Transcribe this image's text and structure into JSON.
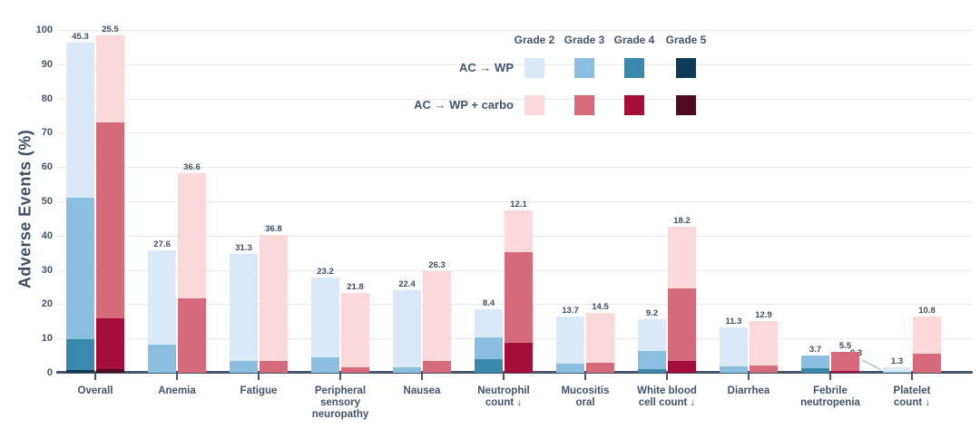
{
  "page": {
    "background": "#ffffff"
  },
  "chart_data": {
    "type": "bar",
    "stacked": true,
    "orientation": "vertical",
    "title": "",
    "xlabel": "",
    "ylabel": "Adverse Events (%)",
    "ylim": [
      0,
      100
    ],
    "yticks": [
      0,
      10,
      20,
      30,
      40,
      50,
      60,
      70,
      80,
      90,
      100
    ],
    "grid": true,
    "legend": {
      "position": "top-right",
      "grade_labels": [
        "Grade 2",
        "Grade 3",
        "Grade 4",
        "Grade 5"
      ],
      "grade_keys": [
        "grade2",
        "grade3",
        "grade4",
        "grade5"
      ]
    },
    "colors": {
      "wp": {
        "grade2": "#d9e9f8",
        "grade3": "#8bbfdf",
        "grade4": "#3a89ad",
        "grade5": "#0e3a57"
      },
      "carbo": {
        "grade2": "#fbd8da",
        "grade3": "#d56a7b",
        "grade4": "#a50d3b",
        "grade5": "#4f0a1e"
      },
      "axis_text": "#44546b",
      "value_label": "#3e4e63",
      "value_label_white": "#ffffff",
      "gridline": "#e8e9eb",
      "baseline": "#47566c",
      "leader_line": "#9fb1c1"
    },
    "categories": [
      "Overall",
      "Anemia",
      "Fatigue",
      "Peripheral sensory neuropathy",
      "Nausea",
      "Neutrophil count ↓",
      "Mucositis oral",
      "White blood cell count ↓",
      "Diarrhea",
      "Febrile neutropenia",
      "Platelet count ↓"
    ],
    "category_lines": [
      [
        "Overall"
      ],
      [
        "Anemia"
      ],
      [
        "Fatigue"
      ],
      [
        "Peripheral",
        "sensory",
        "neuropathy"
      ],
      [
        "Nausea"
      ],
      [
        "Neutrophil",
        "count ↓"
      ],
      [
        "Mucositis",
        "oral"
      ],
      [
        "White blood",
        "cell count ↓"
      ],
      [
        "Diarrhea"
      ],
      [
        "Febrile",
        "neutropenia"
      ],
      [
        "Platelet",
        "count ↓"
      ]
    ],
    "series": [
      {
        "key": "wp",
        "name": "AC → WP",
        "bars": [
          [
            {
              "grade": "grade5",
              "value": 0.8,
              "white_label": true
            },
            {
              "grade": "grade4",
              "value": 8.9
            },
            {
              "grade": "grade3",
              "value": 41.3
            },
            {
              "grade": "grade2",
              "value": 45.3
            }
          ],
          [
            {
              "grade": "grade3",
              "value": 8.2
            },
            {
              "grade": "grade2",
              "value": 27.6
            }
          ],
          [
            {
              "grade": "grade3",
              "value": 3.4
            },
            {
              "grade": "grade2",
              "value": 31.3
            }
          ],
          [
            {
              "grade": "grade3",
              "value": 4.5
            },
            {
              "grade": "grade2",
              "value": 23.2
            }
          ],
          [
            {
              "grade": "grade3",
              "value": 1.6
            },
            {
              "grade": "grade2",
              "value": 22.4
            }
          ],
          [
            {
              "grade": "grade4",
              "value": 3.9
            },
            {
              "grade": "grade3",
              "value": 6.3
            },
            {
              "grade": "grade2",
              "value": 8.4
            }
          ],
          [
            {
              "grade": "grade3",
              "value": 2.6
            },
            {
              "grade": "grade2",
              "value": 13.7
            }
          ],
          [
            {
              "grade": "grade4",
              "value": 1.1
            },
            {
              "grade": "grade3",
              "value": 5.3
            },
            {
              "grade": "grade2",
              "value": 9.2
            }
          ],
          [
            {
              "grade": "grade3",
              "value": 1.8
            },
            {
              "grade": "grade2",
              "value": 11.3
            }
          ],
          [
            {
              "grade": "grade4",
              "value": 1.3
            },
            {
              "grade": "grade3",
              "value": 3.7
            }
          ],
          [
            {
              "grade": "grade3",
              "value": 0.3,
              "callout": true
            },
            {
              "grade": "grade2",
              "value": 1.3
            }
          ]
        ]
      },
      {
        "key": "carbo",
        "name": "AC → WP + carbo",
        "bars": [
          [
            {
              "grade": "grade5",
              "value": 1.1,
              "white_label": true
            },
            {
              "grade": "grade4",
              "value": 14.7
            },
            {
              "grade": "grade3",
              "value": 57.1
            },
            {
              "grade": "grade2",
              "value": 25.5
            }
          ],
          [
            {
              "grade": "grade3",
              "value": 21.6
            },
            {
              "grade": "grade2",
              "value": 36.6
            }
          ],
          [
            {
              "grade": "grade3",
              "value": 3.4
            },
            {
              "grade": "grade2",
              "value": 36.8
            }
          ],
          [
            {
              "grade": "grade3",
              "value": 1.6
            },
            {
              "grade": "grade2",
              "value": 21.8
            }
          ],
          [
            {
              "grade": "grade3",
              "value": 3.4
            },
            {
              "grade": "grade2",
              "value": 26.3
            }
          ],
          [
            {
              "grade": "grade4",
              "value": 8.7
            },
            {
              "grade": "grade3",
              "value": 26.6
            },
            {
              "grade": "grade2",
              "value": 12.1
            }
          ],
          [
            {
              "grade": "grade3",
              "value": 2.9
            },
            {
              "grade": "grade2",
              "value": 14.5
            }
          ],
          [
            {
              "grade": "grade4",
              "value": 3.4
            },
            {
              "grade": "grade3",
              "value": 21.1
            },
            {
              "grade": "grade2",
              "value": 18.2
            }
          ],
          [
            {
              "grade": "grade3",
              "value": 2.1
            },
            {
              "grade": "grade2",
              "value": 12.9
            }
          ],
          [
            {
              "grade": "grade4",
              "value": 0.5
            },
            {
              "grade": "grade3",
              "value": 5.5
            }
          ],
          [
            {
              "grade": "grade3",
              "value": 5.5
            },
            {
              "grade": "grade2",
              "value": 10.8
            }
          ]
        ]
      }
    ]
  }
}
